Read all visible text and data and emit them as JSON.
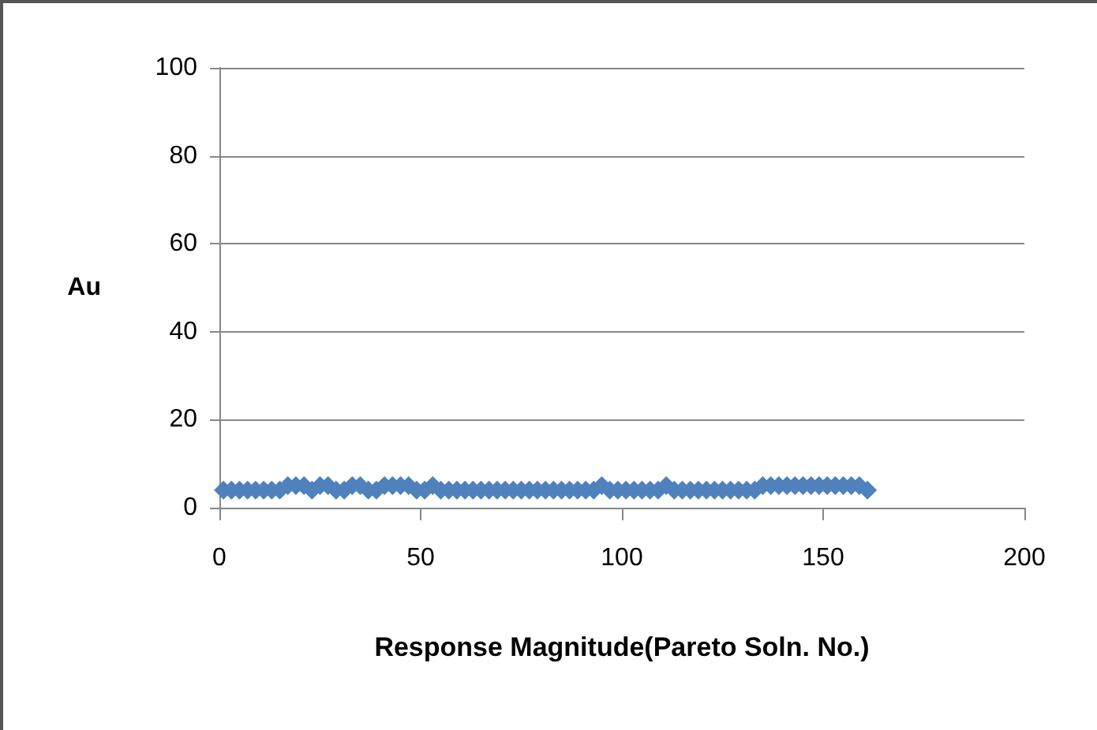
{
  "chart_data": {
    "type": "scatter",
    "xlabel": "Response Magnitude(Pareto Soln. No.)",
    "ylabel": "Au",
    "x": [
      1,
      3,
      5,
      7,
      9,
      11,
      13,
      15,
      17,
      19,
      21,
      23,
      25,
      27,
      29,
      31,
      33,
      35,
      37,
      39,
      41,
      43,
      45,
      47,
      49,
      51,
      53,
      55,
      57,
      59,
      61,
      63,
      65,
      67,
      69,
      71,
      73,
      75,
      77,
      79,
      81,
      83,
      85,
      87,
      89,
      91,
      93,
      95,
      97,
      99,
      101,
      103,
      105,
      107,
      109,
      111,
      113,
      115,
      117,
      119,
      121,
      123,
      125,
      127,
      129,
      131,
      133,
      135,
      137,
      139,
      141,
      143,
      145,
      147,
      149,
      151,
      153,
      155,
      157,
      159,
      161
    ],
    "series": [
      {
        "color": "#4f81bd",
        "values": [
          4,
          4,
          4,
          4,
          4,
          4,
          4,
          4,
          5,
          5,
          5,
          4,
          5,
          5,
          4,
          4,
          5,
          5,
          4,
          4,
          5,
          5,
          5,
          5,
          4,
          4,
          5,
          4,
          4,
          4,
          4,
          4,
          4,
          4,
          4,
          4,
          4,
          4,
          4,
          4,
          4,
          4,
          4,
          4,
          4,
          4,
          4,
          5,
          4,
          4,
          4,
          4,
          4,
          4,
          4,
          5,
          4,
          4,
          4,
          4,
          4,
          4,
          4,
          4,
          4,
          4,
          4,
          5,
          5,
          5,
          5,
          5,
          5,
          5,
          5,
          5,
          5,
          5,
          5,
          5,
          4
        ]
      }
    ],
    "xlim": [
      0,
      200
    ],
    "xticks": [
      0,
      50,
      100,
      150,
      200
    ],
    "ylim": [
      0,
      100
    ],
    "yticks": [
      0,
      20,
      40,
      60,
      80,
      100
    ],
    "grid": "y",
    "marker": "diamond"
  }
}
